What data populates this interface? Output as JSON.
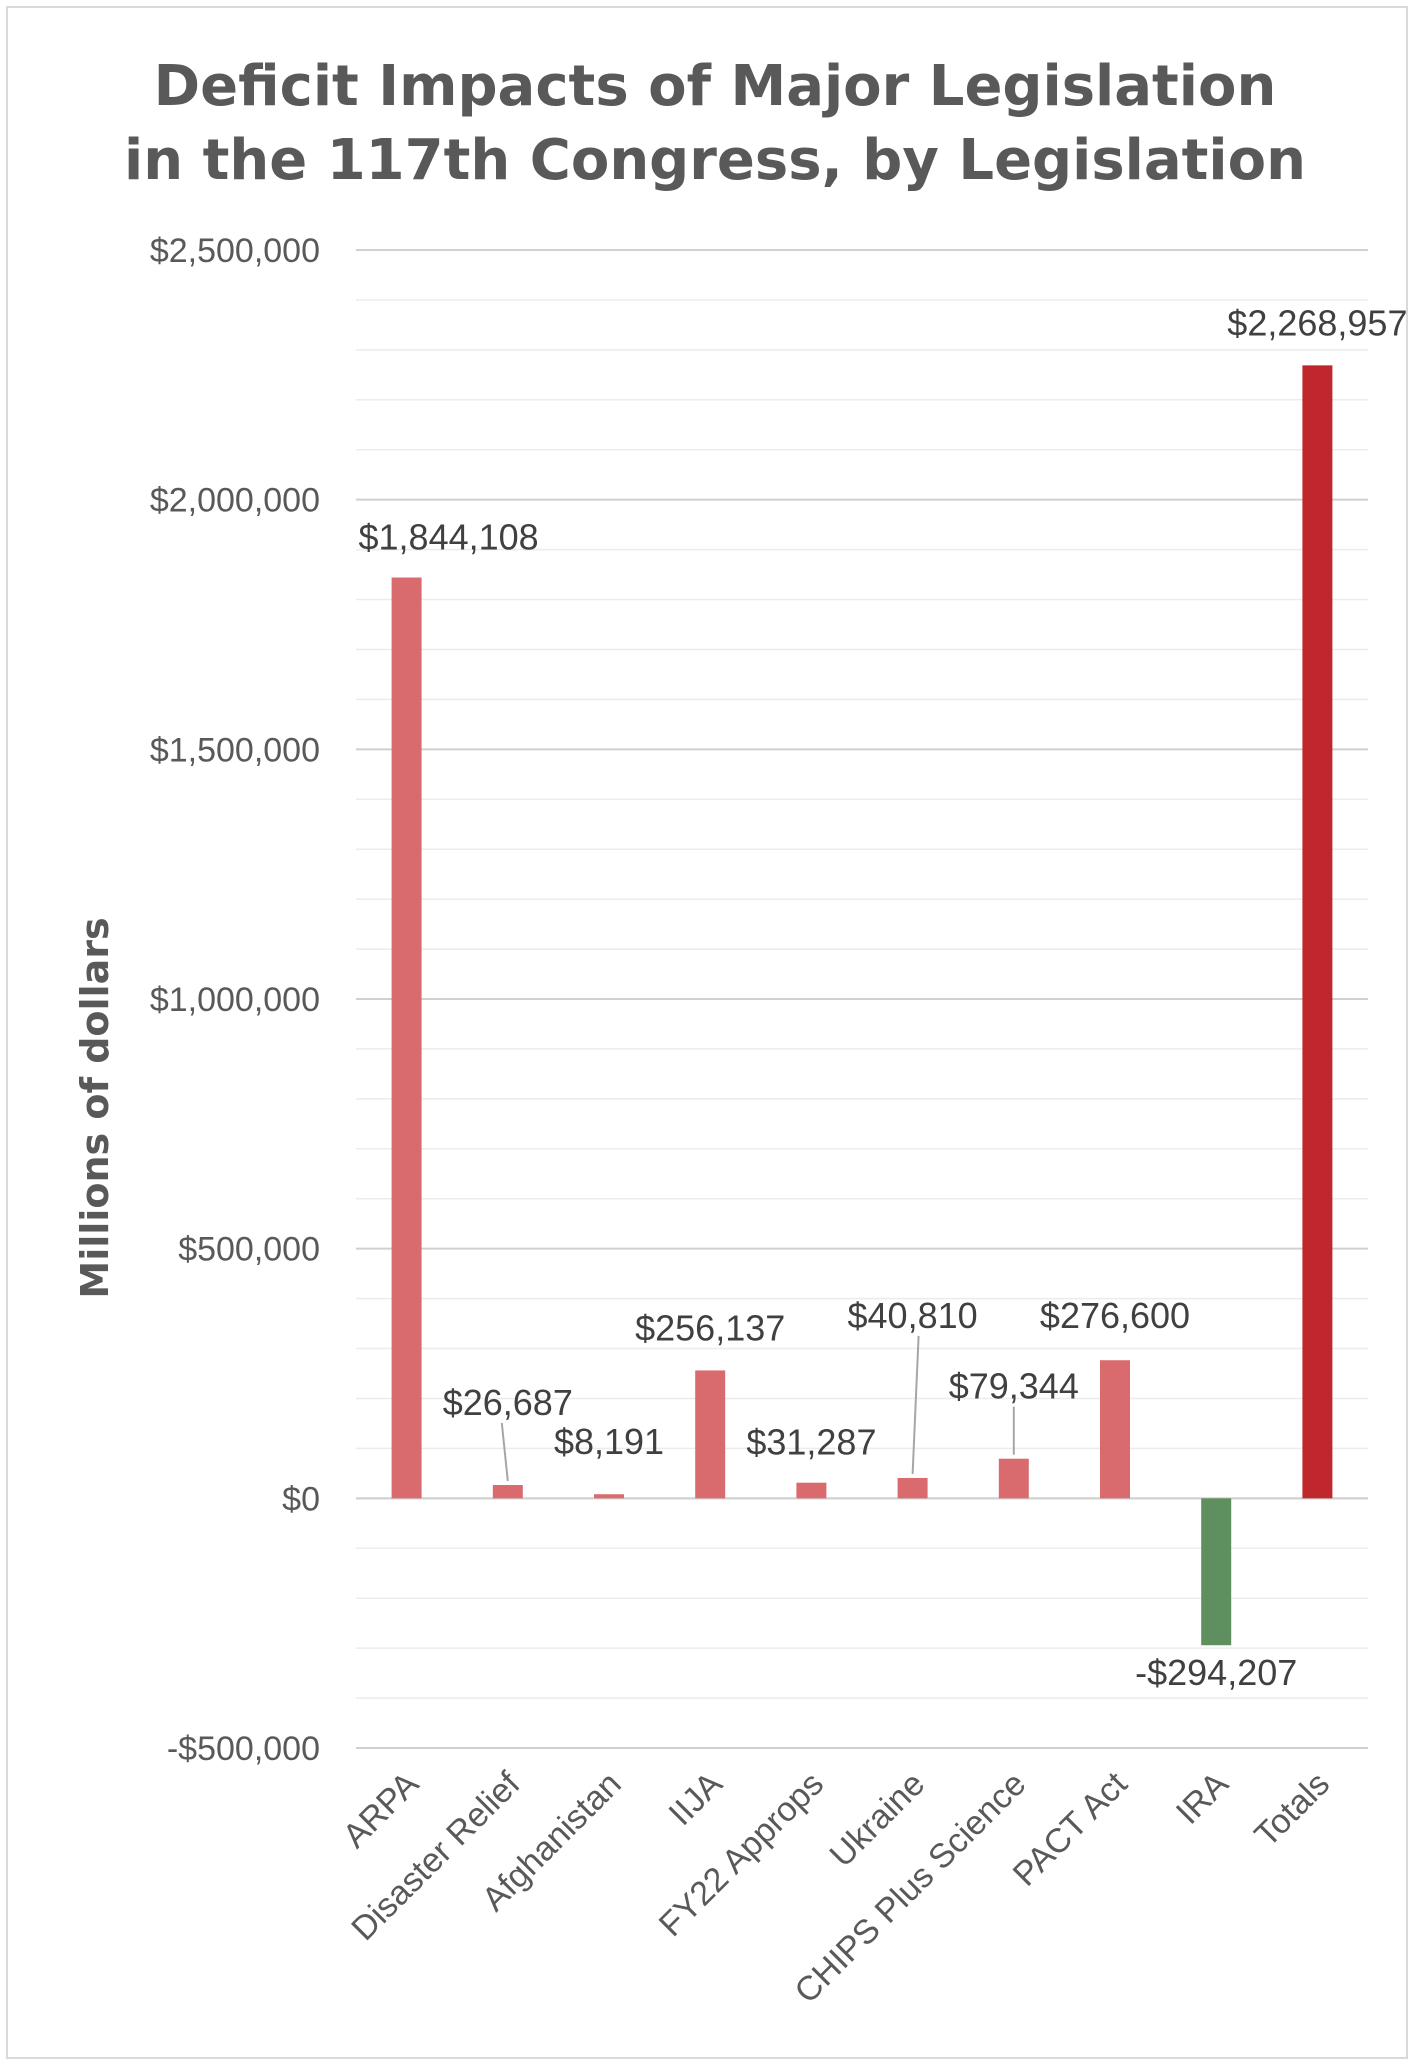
{
  "chart_data": {
    "type": "bar",
    "title": [
      "Deficit Impacts of Major Legislation",
      "in the 117th Congress, by Legislation"
    ],
    "ylabel": "Millions of dollars",
    "xlabel": "",
    "ylim": [
      -500000,
      2500000
    ],
    "yticks": [
      2500000,
      2000000,
      1500000,
      1000000,
      500000,
      0,
      -500000
    ],
    "ytick_labels": [
      "$2,500,000",
      "$2,000,000",
      "$1,500,000",
      "$1,000,000",
      "$500,000",
      "$0",
      "-$500,000"
    ],
    "categories": [
      "ARPA",
      "Disaster Relief",
      "Afghanistan",
      "IIJA",
      "FY22 Approps",
      "Ukraine",
      "CHIPS Plus Science",
      "PACT Act",
      "IRA",
      "Totals"
    ],
    "values": [
      1844108,
      26687,
      8191,
      256137,
      31287,
      40810,
      79344,
      276600,
      -294207,
      2268957
    ],
    "data_labels": [
      "$1,844,108",
      "$26,687",
      "$8,191",
      "$256,137",
      "$31,287",
      "$40,810",
      "$79,344",
      "$276,600",
      "-$294,207",
      "$2,268,957"
    ],
    "grid": true,
    "legend": "none",
    "colors": {
      "increase": "#d96b6e",
      "decrease": "#5e8f5e",
      "total": "#c0272d",
      "grid": "#d9d9d9",
      "text": "#595959"
    }
  }
}
